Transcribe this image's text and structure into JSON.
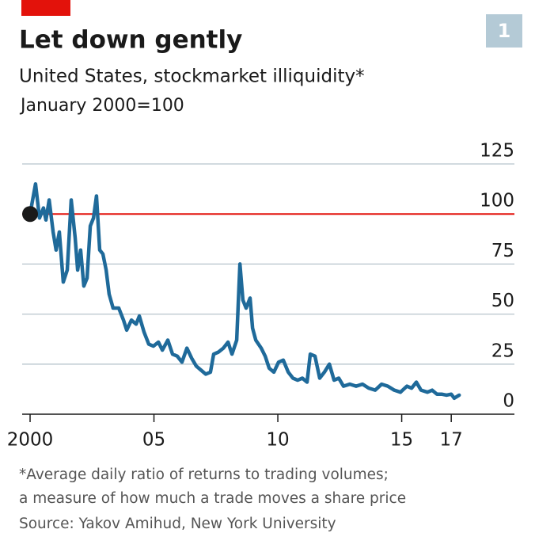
{
  "chart_data": {
    "type": "line",
    "title": "Let down gently",
    "subtitle": "United States, stockmarket illiquidity*",
    "y_label": "January 2000=100",
    "chart_number": "1",
    "footnote": [
      "*Average daily ratio of returns to trading volumes;",
      "a measure of how much a trade moves a share price"
    ],
    "source": "Source: Yakov Amihud, New York University",
    "x": [
      2000.0,
      2000.22,
      2000.38,
      2000.54,
      2000.64,
      2000.77,
      2000.93,
      2001.05,
      2001.18,
      2001.34,
      2001.5,
      2001.66,
      2001.82,
      2001.92,
      2002.04,
      2002.17,
      2002.3,
      2002.43,
      2002.56,
      2002.68,
      2002.81,
      2002.94,
      2003.07,
      2003.19,
      2003.35,
      2003.58,
      2003.77,
      2003.9,
      2004.09,
      2004.28,
      2004.41,
      2004.6,
      2004.79,
      2004.98,
      2005.18,
      2005.34,
      2005.56,
      2005.75,
      2005.94,
      2006.13,
      2006.33,
      2006.52,
      2006.71,
      2006.9,
      2007.09,
      2007.28,
      2007.41,
      2007.6,
      2007.8,
      2007.99,
      2008.15,
      2008.34,
      2008.47,
      2008.59,
      2008.72,
      2008.88,
      2008.98,
      2009.11,
      2009.33,
      2009.49,
      2009.65,
      2009.84,
      2010.03,
      2010.22,
      2010.42,
      2010.61,
      2010.8,
      2010.99,
      2011.18,
      2011.31,
      2011.5,
      2011.69,
      2011.88,
      2012.08,
      2012.27,
      2012.46,
      2012.65,
      2012.91,
      2013.16,
      2013.42,
      2013.67,
      2013.93,
      2014.19,
      2014.44,
      2014.7,
      2014.95,
      2015.21,
      2015.4,
      2015.59,
      2015.78,
      2016.04,
      2016.23,
      2016.42,
      2016.61,
      2016.81,
      2017.0,
      2017.12,
      2017.32
    ],
    "series": [
      {
        "color": "#1f6a9a",
        "values": [
          100,
          115,
          98,
          103,
          97,
          107,
          91,
          82,
          91,
          66,
          72,
          107,
          88,
          72,
          82,
          64,
          68,
          94,
          98,
          109,
          82,
          80,
          72,
          60,
          53,
          53,
          47,
          42,
          47,
          45,
          49,
          41,
          35,
          34,
          36,
          32,
          37,
          30,
          29,
          26,
          33,
          28,
          24,
          22,
          20,
          21,
          30,
          31,
          33,
          36,
          30,
          37,
          75,
          57,
          53,
          58,
          43,
          37,
          33,
          29,
          23,
          21,
          26,
          27,
          21,
          18,
          17,
          18,
          16,
          30,
          29,
          18,
          21,
          25,
          17,
          18,
          14,
          15,
          14,
          15,
          13,
          12,
          15,
          14,
          12,
          11,
          14,
          13,
          16,
          12,
          11,
          12,
          10,
          10,
          9.5,
          10,
          8,
          9.5
        ]
      }
    ],
    "reference": 100,
    "reference_color": "#e3120b",
    "xlim": [
      1999.68,
      2019.55
    ],
    "xticks": [
      2000,
      {
        "value": 2005,
        "label": "05"
      },
      {
        "value": 2010,
        "label": "10"
      },
      {
        "value": 2015,
        "label": "15"
      },
      {
        "value": 2017,
        "label": "17"
      }
    ],
    "ylim": [
      0,
      125
    ],
    "yticks": [
      0,
      25,
      50,
      75,
      100,
      125
    ],
    "grid": true
  }
}
